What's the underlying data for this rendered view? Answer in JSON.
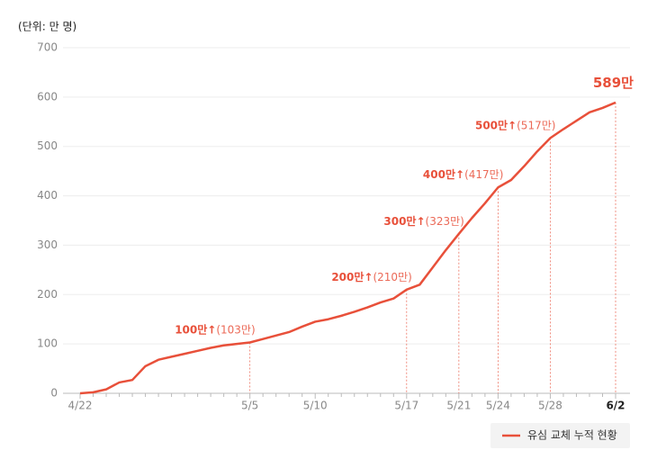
{
  "chart_data": {
    "type": "line",
    "y_label": "(단위: 만 명)",
    "categories": [
      "4/22",
      null,
      null,
      null,
      null,
      null,
      null,
      null,
      null,
      null,
      null,
      null,
      null,
      "5/5",
      null,
      null,
      null,
      null,
      "5/10",
      null,
      null,
      null,
      null,
      null,
      null,
      "5/17",
      null,
      null,
      null,
      "5/21",
      null,
      null,
      "5/24",
      null,
      null,
      null,
      "5/28",
      null,
      null,
      null,
      null,
      "6/2"
    ],
    "series": [
      {
        "name": "유심 교체 누적 현황",
        "color": "#e8503a",
        "values": [
          0,
          2,
          8,
          22,
          27,
          55,
          68,
          74,
          80,
          86,
          92,
          97,
          100,
          103,
          110,
          117,
          124,
          135,
          145,
          150,
          157,
          165,
          174,
          184,
          192,
          210,
          220,
          255,
          290,
          323,
          355,
          385,
          417,
          432,
          460,
          490,
          517,
          535,
          552,
          569,
          578,
          589
        ],
        "value_labels": [
          null,
          null,
          null,
          null,
          null,
          null,
          null,
          null,
          null,
          null,
          null,
          null,
          null,
          "(103만)",
          null,
          null,
          null,
          null,
          null,
          null,
          null,
          null,
          null,
          null,
          null,
          "(210만)",
          null,
          null,
          null,
          "(323만)",
          null,
          null,
          "(417만)",
          null,
          null,
          null,
          "(517만)",
          null,
          null,
          null,
          null,
          "589만"
        ],
        "milestone_labels": [
          null,
          null,
          null,
          null,
          null,
          null,
          null,
          null,
          null,
          null,
          null,
          null,
          null,
          "100만↑",
          null,
          null,
          null,
          null,
          null,
          null,
          null,
          null,
          null,
          null,
          null,
          "200만↑",
          null,
          null,
          null,
          "300만↑",
          null,
          null,
          "400만↑",
          null,
          null,
          null,
          "500만↑",
          null,
          null,
          null,
          null,
          null
        ]
      }
    ],
    "ylim": [
      0,
      700
    ],
    "yticks": [
      0,
      100,
      200,
      300,
      400,
      500,
      600,
      700
    ],
    "grid": true
  }
}
